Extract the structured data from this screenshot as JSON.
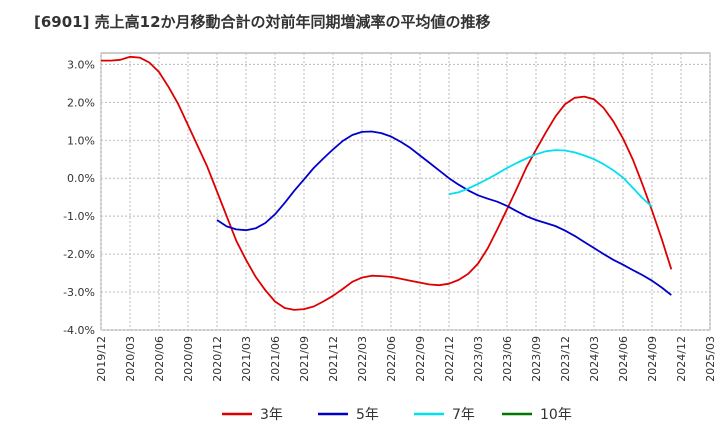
{
  "chart_data": {
    "type": "line",
    "title": "[6901]  売上高12か月移動合計の対前年同期増減率の平均値の推移",
    "xlabel": "",
    "ylabel": "",
    "ylim": [
      -4.0,
      3.3
    ],
    "yticks": [
      3.0,
      2.0,
      1.0,
      0.0,
      -1.0,
      -2.0,
      -3.0,
      -4.0
    ],
    "ytick_labels": [
      "3.0%",
      "2.0%",
      "1.0%",
      "0.0%",
      "-1.0%",
      "-2.0%",
      "-3.0%",
      "-4.0%"
    ],
    "xticks": [
      "2019/12",
      "2020/03",
      "2020/06",
      "2020/09",
      "2020/12",
      "2021/03",
      "2021/06",
      "2021/09",
      "2021/12",
      "2022/03",
      "2022/06",
      "2022/09",
      "2022/12",
      "2023/03",
      "2023/06",
      "2023/09",
      "2023/12",
      "2024/03",
      "2024/06",
      "2024/09",
      "2024/12",
      "2025/03"
    ],
    "grid": true,
    "legend_position": "bottom",
    "series": [
      {
        "name": "3年",
        "color": "#dd0000",
        "start_index": 0,
        "values": [
          3.1,
          3.1,
          3.12,
          3.2,
          3.18,
          3.05,
          2.8,
          2.4,
          1.95,
          1.4,
          0.85,
          0.3,
          -0.35,
          -1.0,
          -1.65,
          -2.15,
          -2.6,
          -2.95,
          -3.25,
          -3.42,
          -3.47,
          -3.45,
          -3.38,
          -3.25,
          -3.1,
          -2.92,
          -2.73,
          -2.62,
          -2.57,
          -2.58,
          -2.6,
          -2.65,
          -2.7,
          -2.75,
          -2.8,
          -2.82,
          -2.78,
          -2.68,
          -2.52,
          -2.25,
          -1.85,
          -1.35,
          -0.82,
          -0.28,
          0.28,
          0.75,
          1.2,
          1.62,
          1.95,
          2.12,
          2.15,
          2.08,
          1.85,
          1.5,
          1.05,
          0.5,
          -0.15,
          -0.85,
          -1.6,
          -2.4
        ]
      },
      {
        "name": "5年",
        "color": "#0000cc",
        "start_index": 12,
        "values": [
          -1.1,
          -1.27,
          -1.35,
          -1.37,
          -1.32,
          -1.18,
          -0.95,
          -0.65,
          -0.33,
          -0.03,
          0.27,
          0.52,
          0.76,
          0.98,
          1.14,
          1.22,
          1.23,
          1.19,
          1.1,
          0.96,
          0.8,
          0.6,
          0.4,
          0.2,
          0.0,
          -0.17,
          -0.32,
          -0.45,
          -0.54,
          -0.62,
          -0.73,
          -0.87,
          -1.0,
          -1.1,
          -1.18,
          -1.26,
          -1.38,
          -1.52,
          -1.68,
          -1.84,
          -2.0,
          -2.15,
          -2.28,
          -2.42,
          -2.55,
          -2.7,
          -2.88,
          -3.08
        ]
      },
      {
        "name": "7年",
        "color": "#00e0ee",
        "start_index": 36,
        "values": [
          -0.42,
          -0.37,
          -0.27,
          -0.15,
          -0.02,
          0.12,
          0.27,
          0.4,
          0.52,
          0.63,
          0.71,
          0.74,
          0.73,
          0.68,
          0.6,
          0.5,
          0.37,
          0.21,
          0.02,
          -0.25,
          -0.52,
          -0.75
        ]
      },
      {
        "name": "10年",
        "color": "#007700",
        "start_index": 0,
        "values": []
      }
    ]
  }
}
